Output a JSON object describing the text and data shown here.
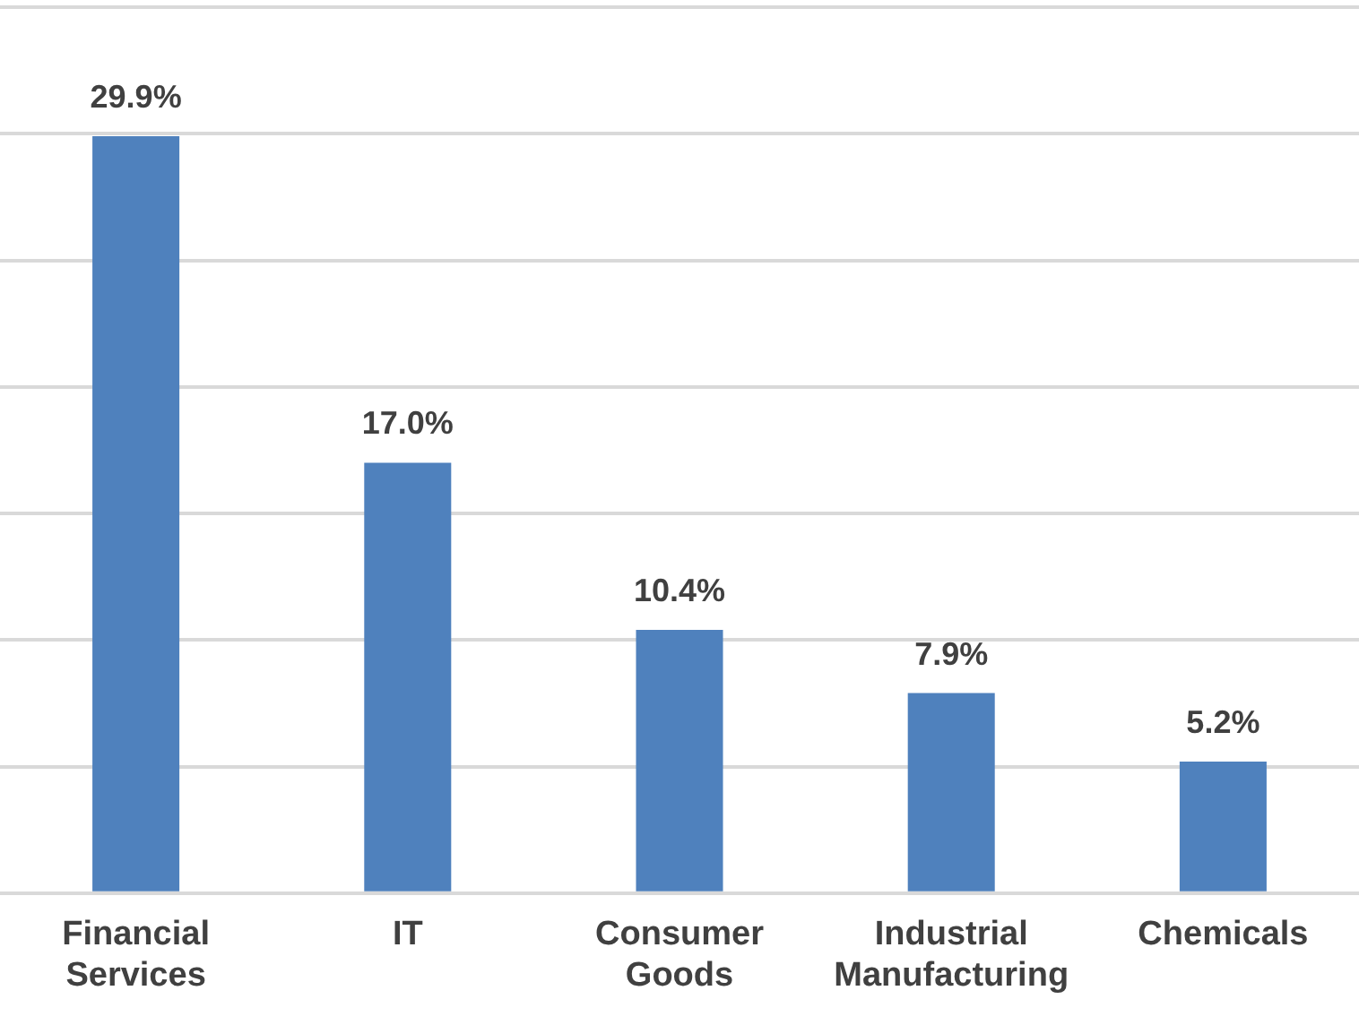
{
  "chart_data": {
    "type": "bar",
    "categories": [
      "Financial Services",
      "IT",
      "Consumer Goods",
      "Industrial Manufacturing",
      "Chemicals"
    ],
    "values": [
      29.9,
      17.0,
      10.4,
      7.9,
      5.2
    ],
    "value_labels": [
      "29.9%",
      "17.0%",
      "10.4%",
      "7.9%",
      "5.2%"
    ],
    "color": "#4f81bd",
    "ylim": [
      0,
      35
    ],
    "yticks": [
      {
        "value": 0,
        "label": null
      },
      {
        "value": 5,
        "label": null
      },
      {
        "value": 10,
        "label": null
      },
      {
        "value": 15,
        "label": null
      },
      {
        "value": 20,
        "label": null
      },
      {
        "value": 25,
        "label": null
      },
      {
        "value": 30,
        "label": null
      },
      {
        "value": 35,
        "label": null
      }
    ],
    "grid": "y",
    "tick_labels": "x",
    "legend": false
  }
}
